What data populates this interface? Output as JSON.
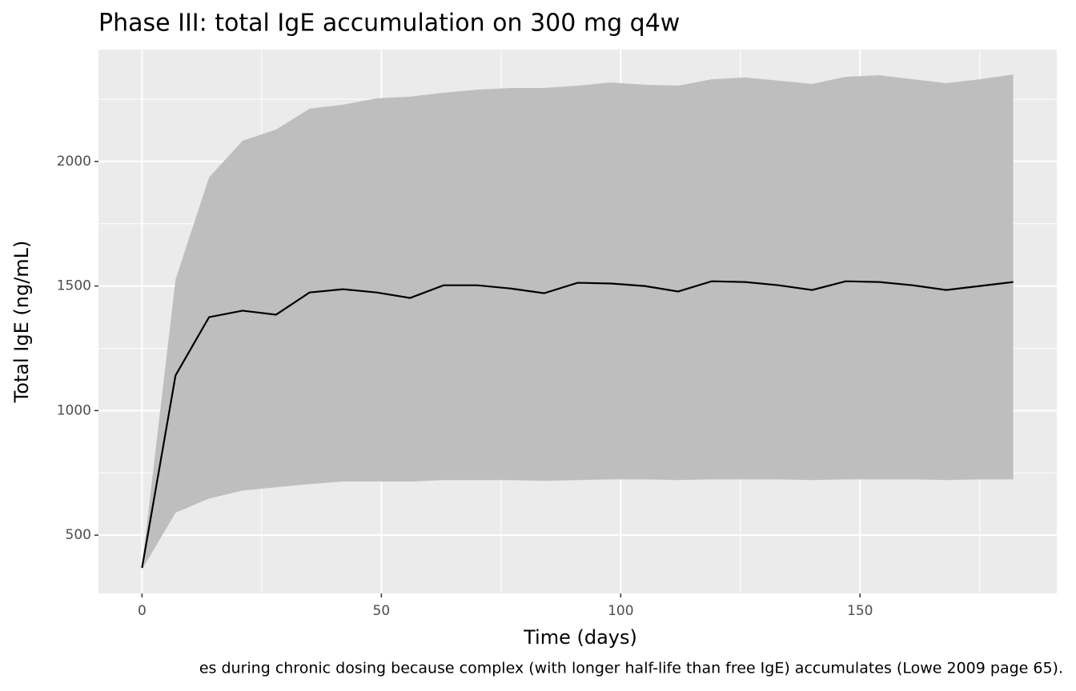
{
  "chart_data": {
    "type": "ribbon-line",
    "title": "Phase III: total IgE accumulation on 300 mg q4w",
    "x_label": "Time (days)",
    "y_label": "Total IgE (ng/mL)",
    "caption": "es during chronic dosing because complex (with longer half-life than free IgE) accumulates (Lowe 2009 page 65).",
    "x": [
      0,
      7,
      14,
      21,
      28,
      35,
      42,
      49,
      56,
      63,
      70,
      77,
      84,
      91,
      98,
      105,
      112,
      119,
      126,
      133,
      140,
      147,
      154,
      161,
      168,
      175,
      182
    ],
    "values": [
      369,
      1141,
      1375,
      1401,
      1385,
      1474,
      1487,
      1474,
      1452,
      1503,
      1503,
      1490,
      1471,
      1513,
      1510,
      1500,
      1478,
      1519,
      1516,
      1503,
      1484,
      1519,
      1516,
      1503,
      1484,
      1500,
      1516
    ],
    "color": "#000000",
    "ribbon_upper": [
      375,
      1526,
      1936,
      2083,
      2128,
      2212,
      2228,
      2253,
      2260,
      2276,
      2288,
      2295,
      2295,
      2304,
      2317,
      2308,
      2304,
      2330,
      2337,
      2324,
      2311,
      2340,
      2346,
      2330,
      2314,
      2330,
      2349
    ],
    "ribbon_lower": [
      362,
      590,
      647,
      679,
      692,
      705,
      715,
      715,
      715,
      721,
      721,
      721,
      718,
      721,
      724,
      724,
      721,
      724,
      724,
      724,
      721,
      724,
      724,
      724,
      721,
      724,
      724
    ],
    "ribbon_color": "#bebebe",
    "xlim": [
      -9.1,
      191.1
    ],
    "ylim": [
      266,
      2449
    ],
    "xticks": [
      0,
      50,
      100,
      150
    ],
    "yticks": [
      500,
      1000,
      1500,
      2000
    ],
    "x_minor_ticks": [
      25,
      75,
      125,
      175
    ],
    "y_minor_ticks": [
      750,
      1250,
      1750,
      2250
    ],
    "grid": true
  }
}
